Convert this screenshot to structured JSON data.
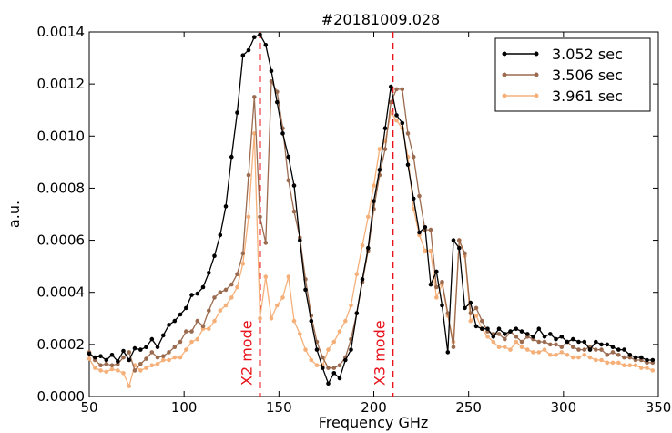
{
  "chart_data": {
    "type": "line",
    "title": "#20181009.028",
    "xlabel": "Frequency GHz",
    "ylabel": "a.u.",
    "xlim": [
      50,
      350
    ],
    "ylim": [
      0,
      0.0014
    ],
    "xticks": [
      50,
      100,
      150,
      200,
      250,
      300,
      350
    ],
    "xtick_labels": [
      "50",
      "100",
      "150",
      "200",
      "250",
      "300",
      "350"
    ],
    "yticks": [
      0,
      0.0002,
      0.0004,
      0.0006,
      0.0008,
      0.001,
      0.0012,
      0.0014
    ],
    "ytick_labels": [
      "0.0000",
      "0.0002",
      "0.0004",
      "0.0006",
      "0.0008",
      "0.0010",
      "0.0012",
      "0.0014"
    ],
    "grid": false,
    "legend_position": "top-right",
    "x": [
      50,
      53,
      56,
      59,
      62,
      65,
      68,
      71,
      74,
      77,
      80,
      83,
      86,
      89,
      92,
      95,
      98,
      101,
      104,
      107,
      110,
      113,
      116,
      119,
      122,
      125,
      128,
      131,
      134,
      137,
      140,
      143,
      146,
      149,
      152,
      155,
      158,
      161,
      164,
      167,
      170,
      173,
      176,
      179,
      182,
      185,
      188,
      191,
      194,
      197,
      200,
      203,
      206,
      209,
      212,
      215,
      218,
      221,
      224,
      227,
      230,
      233,
      236,
      239,
      242,
      245,
      248,
      251,
      254,
      257,
      260,
      263,
      266,
      269,
      272,
      275,
      278,
      281,
      284,
      287,
      290,
      293,
      296,
      299,
      302,
      305,
      308,
      311,
      314,
      317,
      320,
      323,
      326,
      329,
      332,
      335,
      338,
      341,
      344,
      347
    ],
    "series": [
      {
        "name": "3.052 sec",
        "color": "#000000",
        "values": [
          0.000165,
          0.00015,
          0.000155,
          0.00014,
          0.00016,
          0.000135,
          0.000175,
          0.00014,
          0.000185,
          0.00018,
          0.00019,
          0.00022,
          0.00019,
          0.000235,
          0.000275,
          0.00029,
          0.000315,
          0.00034,
          0.00039,
          0.000395,
          0.00042,
          0.000475,
          0.00054,
          0.00062,
          0.00073,
          0.00092,
          0.00109,
          0.00131,
          0.00133,
          0.00138,
          0.00139,
          0.00135,
          0.00125,
          0.00113,
          0.00101,
          0.00092,
          0.00081,
          0.0006,
          0.00041,
          0.00029,
          0.00018,
          0.00011,
          5e-05,
          9e-05,
          7e-05,
          0.00014,
          0.00018,
          0.00032,
          0.00045,
          0.00057,
          0.00075,
          0.00087,
          0.00103,
          0.00119,
          0.00108,
          0.00105,
          0.00089,
          0.00076,
          0.00063,
          0.00065,
          0.00043,
          0.00048,
          0.00035,
          0.00017,
          0.0006,
          0.00057,
          0.00034,
          0.00036,
          0.00027,
          0.00026,
          0.00026,
          0.00023,
          0.00026,
          0.00024,
          0.00025,
          0.00026,
          0.00025,
          0.00024,
          0.00023,
          0.00026,
          0.00023,
          0.00024,
          0.00022,
          0.00023,
          0.00021,
          0.00022,
          0.00021,
          0.00021,
          0.00018,
          0.00021,
          0.0002,
          0.0002,
          0.00019,
          0.00018,
          0.00018,
          0.00016,
          0.00015,
          0.00015,
          0.00014,
          0.00014
        ]
      },
      {
        "name": "3.506 sec",
        "color": "#9b6b4f",
        "values": [
          0.00017,
          0.00014,
          0.00012,
          0.000125,
          0.00012,
          0.000125,
          0.00015,
          0.00017,
          0.0001,
          0.000125,
          0.000145,
          0.00017,
          0.00015,
          0.000155,
          0.00017,
          0.00019,
          0.00021,
          0.00025,
          0.00025,
          0.00029,
          0.00027,
          0.00033,
          0.00038,
          0.0004,
          0.00041,
          0.00043,
          0.00047,
          0.00055,
          0.00085,
          0.00115,
          0.00069,
          0.00059,
          0.00121,
          0.00117,
          0.00103,
          0.00083,
          0.00071,
          0.00061,
          0.00045,
          0.00031,
          0.00021,
          0.00015,
          0.00011,
          0.00011,
          0.00012,
          0.00015,
          0.00022,
          0.00032,
          0.00044,
          0.00056,
          0.00072,
          0.00085,
          0.00095,
          0.00113,
          0.00118,
          0.00118,
          0.00101,
          0.00092,
          0.00077,
          0.00064,
          0.00064,
          0.00042,
          0.00044,
          0.00032,
          0.00019,
          0.0006,
          0.00055,
          0.00032,
          0.00034,
          0.00029,
          0.00025,
          0.00024,
          0.00024,
          0.00022,
          0.00025,
          0.00023,
          0.00021,
          0.00023,
          0.00022,
          0.00021,
          0.00021,
          0.0002,
          0.0002,
          0.00019,
          0.00021,
          0.00019,
          0.00018,
          0.00018,
          0.00019,
          0.00018,
          0.00018,
          0.00016,
          0.00017,
          0.00016,
          0.00015,
          0.00015,
          0.00014,
          0.00014,
          0.00013,
          0.00013
        ]
      },
      {
        "name": "3.961 sec",
        "color": "#f5b07a",
        "values": [
          0.000145,
          0.00011,
          0.0001,
          9.5e-05,
          0.000105,
          0.0001,
          9e-05,
          4e-05,
          0.00012,
          0.0001,
          0.00011,
          0.00012,
          0.000125,
          0.00014,
          0.00014,
          0.00015,
          0.00015,
          0.00018,
          0.00021,
          0.00022,
          0.00026,
          0.00026,
          0.00029,
          0.00033,
          0.00035,
          0.00038,
          0.00042,
          0.00051,
          0.00069,
          0.00101,
          0.0003,
          0.00046,
          0.0003,
          0.00035,
          0.00038,
          0.00046,
          0.00029,
          0.00024,
          0.00018,
          0.00014,
          0.00012,
          0.00012,
          0.00018,
          0.00021,
          0.00025,
          0.00029,
          0.00035,
          0.00047,
          0.00058,
          0.00069,
          0.00081,
          0.00095,
          0.00098,
          0.00109,
          0.00106,
          0.00103,
          0.00092,
          0.00072,
          0.00062,
          0.00056,
          0.00056,
          0.00038,
          0.00043,
          0.00031,
          0.00021,
          0.0006,
          0.00054,
          0.00029,
          0.00031,
          0.00026,
          0.00023,
          0.00021,
          0.00019,
          0.00019,
          0.00018,
          0.00021,
          0.00019,
          0.00018,
          0.00017,
          0.00017,
          0.00018,
          0.00016,
          0.00016,
          0.00017,
          0.00016,
          0.00015,
          0.00015,
          0.00016,
          0.00015,
          0.00014,
          0.00014,
          0.00013,
          0.00013,
          0.00013,
          0.00012,
          0.00012,
          0.00012,
          0.00011,
          0.00011,
          0.0001
        ]
      }
    ],
    "vlines": [
      {
        "x": 140,
        "color": "#e8141c",
        "style": "dashed",
        "label": "X2 mode"
      },
      {
        "x": 210,
        "color": "#e8141c",
        "style": "dashed",
        "label": "X3 mode"
      }
    ]
  }
}
